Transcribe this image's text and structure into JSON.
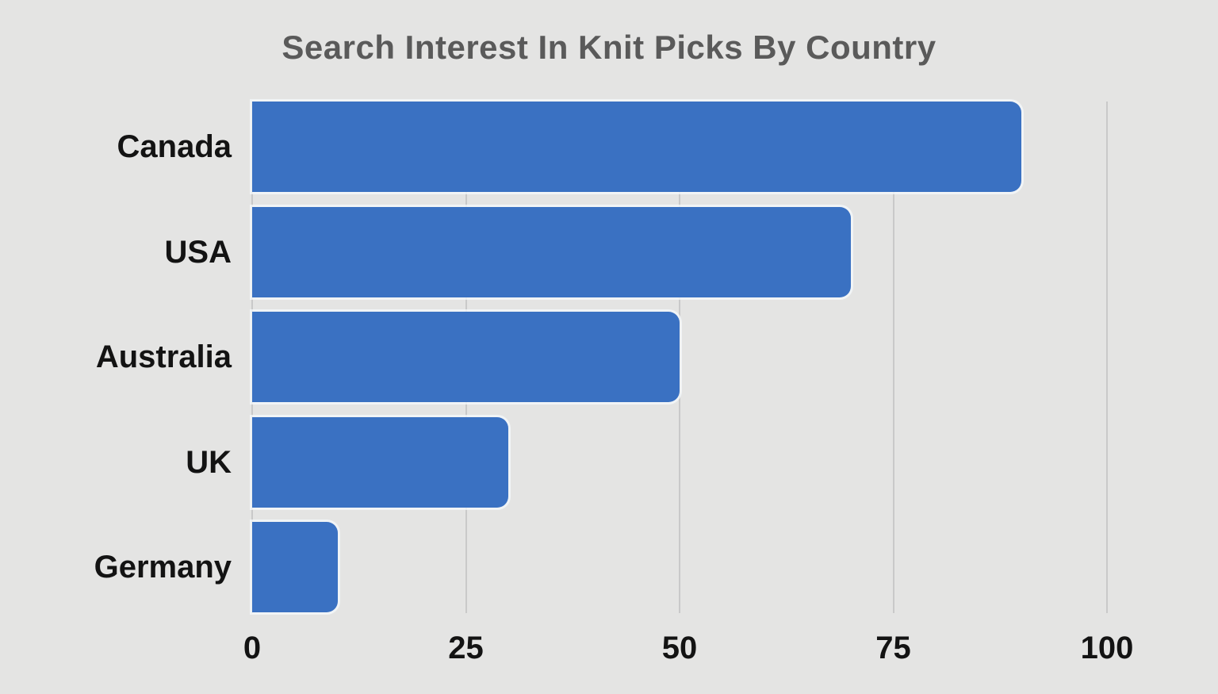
{
  "chart_data": {
    "type": "bar",
    "orientation": "horizontal",
    "title": "Search Interest In Knit Picks By Country",
    "categories": [
      "Canada",
      "USA",
      "Australia",
      "UK",
      "Germany"
    ],
    "values": [
      90,
      70,
      50,
      30,
      10
    ],
    "xlabel": "",
    "ylabel": "",
    "xlim": [
      0,
      100
    ],
    "x_ticks": [
      0,
      25,
      50,
      75,
      100
    ],
    "grid": true,
    "legend": false,
    "colors": {
      "bar": "#3a71c2",
      "background": "#e4e4e3",
      "gridline": "#c9c9c9",
      "title": "#5a5a5a",
      "labels": "#131313"
    }
  }
}
